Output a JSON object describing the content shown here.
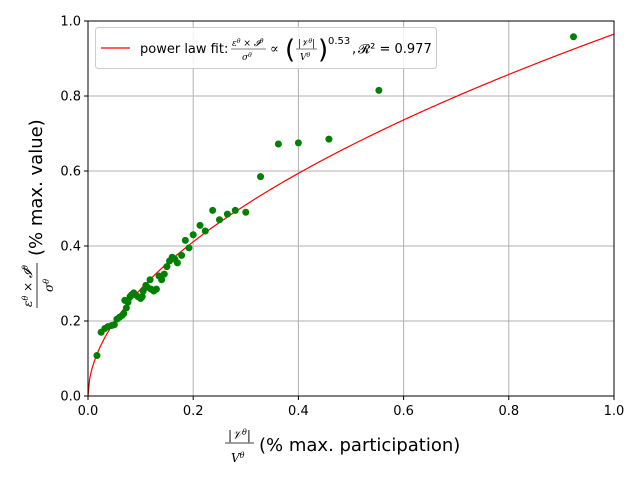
{
  "chart_data": {
    "type": "scatter",
    "xlim": [
      0,
      1
    ],
    "ylim": [
      0,
      1
    ],
    "grid": true,
    "legend_placement": "top-left",
    "xticks": [
      "0.0",
      "0.2",
      "0.4",
      "0.6",
      "0.8",
      "1.0"
    ],
    "yticks": [
      "0.0",
      "0.2",
      "0.4",
      "0.6",
      "0.8",
      "1.0"
    ],
    "xlabel": {
      "fraction_num": "|V^θ|",
      "fraction_den": "V^θ",
      "text": "(% max. participation)"
    },
    "ylabel": {
      "fraction_num": "ε^θ × 𝓘^θ",
      "fraction_den": "σ^θ",
      "text": "(% max. value)"
    },
    "colors": {
      "points": "#008000",
      "fit": "#ff0000",
      "grid": "#b0b0b0"
    },
    "fit": {
      "label": "power law fit: (ε^θ × 𝓘^θ)/σ^θ ∝ (|V^θ|/V^θ)^0.53, 𝓡² = 0.977",
      "exponent": 0.53,
      "coefficient": 0.965,
      "r2_label": "𝓡² = 0.977"
    },
    "series": [
      {
        "x": [
          0.017,
          0.025,
          0.032,
          0.038,
          0.045,
          0.05,
          0.055,
          0.06,
          0.065,
          0.068,
          0.07,
          0.073,
          0.076,
          0.08,
          0.083,
          0.087,
          0.09,
          0.095,
          0.1,
          0.103,
          0.105,
          0.11,
          0.113,
          0.118,
          0.12,
          0.125,
          0.13,
          0.135,
          0.14,
          0.145,
          0.15,
          0.155,
          0.16,
          0.165,
          0.17,
          0.178,
          0.185,
          0.192,
          0.2,
          0.213,
          0.223,
          0.237,
          0.25,
          0.265,
          0.28,
          0.3,
          0.328,
          0.362,
          0.4,
          0.458,
          0.553,
          0.923
        ],
        "y": [
          0.108,
          0.17,
          0.18,
          0.185,
          0.188,
          0.19,
          0.205,
          0.21,
          0.215,
          0.22,
          0.255,
          0.235,
          0.25,
          0.265,
          0.27,
          0.275,
          0.27,
          0.265,
          0.26,
          0.265,
          0.28,
          0.295,
          0.29,
          0.31,
          0.285,
          0.28,
          0.285,
          0.32,
          0.31,
          0.325,
          0.345,
          0.36,
          0.37,
          0.365,
          0.355,
          0.375,
          0.415,
          0.395,
          0.43,
          0.455,
          0.44,
          0.495,
          0.47,
          0.485,
          0.495,
          0.49,
          0.585,
          0.672,
          0.675,
          0.685,
          0.815,
          0.958
        ]
      }
    ]
  }
}
